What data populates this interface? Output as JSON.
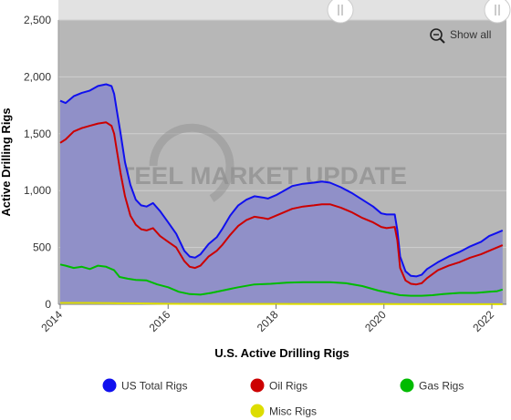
{
  "chart_data": {
    "type": "area",
    "xlabel": "U.S. Active Drilling Rigs",
    "ylabel": "Active Drilling Rigs",
    "xlim": [
      2014.0,
      2022.2
    ],
    "ylim": [
      0,
      2500
    ],
    "x_ticks": [
      "2014",
      "2016",
      "2018",
      "2020",
      "2022"
    ],
    "y_ticks": [
      "0",
      "500",
      "1,000",
      "1,500",
      "2,000",
      "2,500"
    ],
    "grid": "horizontal",
    "legend_position": "bottom",
    "show_all_label": "Show all",
    "watermark": "STEEL MARKET UPDATE",
    "series": [
      {
        "name": "US Total Rigs",
        "color": "#1010ee",
        "fill": "#9090c8",
        "points": [
          [
            2014.0,
            1790
          ],
          [
            2014.1,
            1770
          ],
          [
            2014.25,
            1830
          ],
          [
            2014.4,
            1860
          ],
          [
            2014.55,
            1880
          ],
          [
            2014.7,
            1920
          ],
          [
            2014.8,
            1930
          ],
          [
            2014.85,
            1935
          ],
          [
            2014.95,
            1920
          ],
          [
            2015.0,
            1850
          ],
          [
            2015.05,
            1700
          ],
          [
            2015.12,
            1500
          ],
          [
            2015.2,
            1250
          ],
          [
            2015.3,
            1050
          ],
          [
            2015.4,
            920
          ],
          [
            2015.5,
            870
          ],
          [
            2015.6,
            860
          ],
          [
            2015.72,
            890
          ],
          [
            2015.85,
            820
          ],
          [
            2016.0,
            720
          ],
          [
            2016.15,
            620
          ],
          [
            2016.3,
            470
          ],
          [
            2016.4,
            420
          ],
          [
            2016.5,
            410
          ],
          [
            2016.6,
            440
          ],
          [
            2016.75,
            530
          ],
          [
            2016.9,
            590
          ],
          [
            2017.0,
            660
          ],
          [
            2017.15,
            780
          ],
          [
            2017.3,
            870
          ],
          [
            2017.45,
            920
          ],
          [
            2017.6,
            950
          ],
          [
            2017.75,
            940
          ],
          [
            2017.85,
            930
          ],
          [
            2018.0,
            960
          ],
          [
            2018.15,
            1000
          ],
          [
            2018.3,
            1040
          ],
          [
            2018.5,
            1060
          ],
          [
            2018.7,
            1070
          ],
          [
            2018.85,
            1080
          ],
          [
            2019.0,
            1070
          ],
          [
            2019.2,
            1030
          ],
          [
            2019.4,
            980
          ],
          [
            2019.6,
            920
          ],
          [
            2019.8,
            860
          ],
          [
            2019.95,
            800
          ],
          [
            2020.05,
            790
          ],
          [
            2020.2,
            790
          ],
          [
            2020.25,
            650
          ],
          [
            2020.3,
            420
          ],
          [
            2020.4,
            290
          ],
          [
            2020.5,
            250
          ],
          [
            2020.6,
            245
          ],
          [
            2020.7,
            260
          ],
          [
            2020.8,
            310
          ],
          [
            2021.0,
            370
          ],
          [
            2021.2,
            420
          ],
          [
            2021.4,
            460
          ],
          [
            2021.6,
            510
          ],
          [
            2021.8,
            550
          ],
          [
            2021.95,
            600
          ],
          [
            2022.1,
            630
          ],
          [
            2022.2,
            650
          ]
        ]
      },
      {
        "name": "Oil Rigs",
        "color": "#cc0000",
        "fill": null,
        "points": [
          [
            2014.0,
            1420
          ],
          [
            2014.1,
            1450
          ],
          [
            2014.25,
            1520
          ],
          [
            2014.4,
            1550
          ],
          [
            2014.55,
            1570
          ],
          [
            2014.7,
            1590
          ],
          [
            2014.85,
            1600
          ],
          [
            2014.95,
            1570
          ],
          [
            2015.0,
            1500
          ],
          [
            2015.05,
            1350
          ],
          [
            2015.12,
            1150
          ],
          [
            2015.2,
            950
          ],
          [
            2015.3,
            780
          ],
          [
            2015.4,
            700
          ],
          [
            2015.5,
            660
          ],
          [
            2015.6,
            650
          ],
          [
            2015.72,
            670
          ],
          [
            2015.85,
            600
          ],
          [
            2016.0,
            550
          ],
          [
            2016.15,
            500
          ],
          [
            2016.3,
            380
          ],
          [
            2016.4,
            330
          ],
          [
            2016.5,
            320
          ],
          [
            2016.6,
            340
          ],
          [
            2016.75,
            420
          ],
          [
            2016.9,
            470
          ],
          [
            2017.0,
            520
          ],
          [
            2017.15,
            610
          ],
          [
            2017.3,
            690
          ],
          [
            2017.45,
            740
          ],
          [
            2017.6,
            770
          ],
          [
            2017.75,
            760
          ],
          [
            2017.85,
            750
          ],
          [
            2018.0,
            780
          ],
          [
            2018.15,
            810
          ],
          [
            2018.3,
            840
          ],
          [
            2018.5,
            860
          ],
          [
            2018.7,
            870
          ],
          [
            2018.85,
            880
          ],
          [
            2019.0,
            880
          ],
          [
            2019.2,
            850
          ],
          [
            2019.4,
            810
          ],
          [
            2019.6,
            760
          ],
          [
            2019.8,
            720
          ],
          [
            2019.95,
            680
          ],
          [
            2020.05,
            670
          ],
          [
            2020.2,
            680
          ],
          [
            2020.25,
            560
          ],
          [
            2020.3,
            320
          ],
          [
            2020.4,
            210
          ],
          [
            2020.5,
            180
          ],
          [
            2020.6,
            175
          ],
          [
            2020.7,
            185
          ],
          [
            2020.8,
            230
          ],
          [
            2021.0,
            300
          ],
          [
            2021.2,
            340
          ],
          [
            2021.4,
            370
          ],
          [
            2021.6,
            410
          ],
          [
            2021.8,
            440
          ],
          [
            2021.95,
            470
          ],
          [
            2022.1,
            500
          ],
          [
            2022.2,
            520
          ]
        ]
      },
      {
        "name": "Gas Rigs",
        "color": "#00bb00",
        "fill": null,
        "points": [
          [
            2014.0,
            350
          ],
          [
            2014.1,
            340
          ],
          [
            2014.25,
            320
          ],
          [
            2014.4,
            330
          ],
          [
            2014.55,
            310
          ],
          [
            2014.7,
            340
          ],
          [
            2014.85,
            330
          ],
          [
            2015.0,
            300
          ],
          [
            2015.1,
            240
          ],
          [
            2015.25,
            225
          ],
          [
            2015.4,
            215
          ],
          [
            2015.6,
            210
          ],
          [
            2015.8,
            175
          ],
          [
            2016.0,
            150
          ],
          [
            2016.2,
            110
          ],
          [
            2016.4,
            90
          ],
          [
            2016.6,
            85
          ],
          [
            2016.8,
            100
          ],
          [
            2017.0,
            120
          ],
          [
            2017.3,
            150
          ],
          [
            2017.6,
            175
          ],
          [
            2017.9,
            180
          ],
          [
            2018.2,
            190
          ],
          [
            2018.5,
            195
          ],
          [
            2018.8,
            195
          ],
          [
            2019.0,
            195
          ],
          [
            2019.3,
            185
          ],
          [
            2019.6,
            160
          ],
          [
            2019.9,
            120
          ],
          [
            2020.1,
            100
          ],
          [
            2020.3,
            80
          ],
          [
            2020.5,
            75
          ],
          [
            2020.7,
            75
          ],
          [
            2020.9,
            80
          ],
          [
            2021.1,
            90
          ],
          [
            2021.4,
            100
          ],
          [
            2021.7,
            100
          ],
          [
            2021.95,
            110
          ],
          [
            2022.1,
            115
          ],
          [
            2022.2,
            130
          ]
        ]
      },
      {
        "name": "Misc Rigs",
        "color": "#dddd00",
        "fill": null,
        "points": [
          [
            2014.0,
            12
          ],
          [
            2014.5,
            12
          ],
          [
            2015.0,
            10
          ],
          [
            2015.5,
            8
          ],
          [
            2016.0,
            4
          ],
          [
            2017.0,
            3
          ],
          [
            2018.0,
            3
          ],
          [
            2019.0,
            2
          ],
          [
            2020.0,
            2
          ],
          [
            2021.0,
            1
          ],
          [
            2022.2,
            1
          ]
        ]
      }
    ]
  }
}
